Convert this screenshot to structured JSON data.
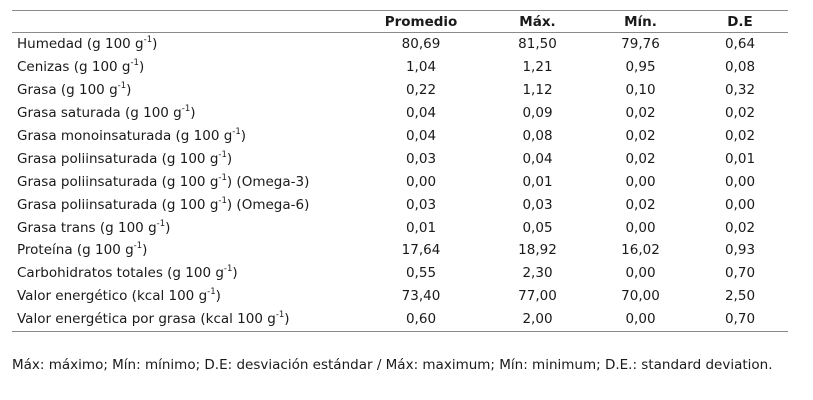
{
  "table": {
    "headers": [
      "",
      "Promedio",
      "Máx.",
      "Mín.",
      "D.E"
    ],
    "rows": [
      {
        "label": "Humedad (g 100 g",
        "sup": "-1",
        "close": ")",
        "promedio": "80,69",
        "max": "81,50",
        "min": "79,76",
        "de": "0,64"
      },
      {
        "label": "Cenizas (g 100 g",
        "sup": "-1",
        "close": ")",
        "promedio": "1,04",
        "max": "1,21",
        "min": "0,95",
        "de": "0,08"
      },
      {
        "label": "Grasa (g 100 g",
        "sup": "-1",
        "close": ")",
        "promedio": "0,22",
        "max": "1,12",
        "min": "0,10",
        "de": "0,32"
      },
      {
        "label": "Grasa saturada (g 100 g",
        "sup": "-1",
        "close": ")",
        "promedio": "0,04",
        "max": "0,09",
        "min": "0,02",
        "de": "0,02"
      },
      {
        "label": "Grasa monoinsaturada (g 100 g",
        "sup": "-1",
        "close": ")",
        "promedio": "0,04",
        "max": "0,08",
        "min": "0,02",
        "de": "0,02"
      },
      {
        "label": "Grasa poliinsaturada (g 100 g",
        "sup": "-1",
        "close": ")",
        "promedio": "0,03",
        "max": "0,04",
        "min": "0,02",
        "de": "0,01"
      },
      {
        "label": "Grasa poliinsaturada (g 100 g",
        "sup": "-1",
        "close": ") (Omega-3)",
        "promedio": "0,00",
        "max": "0,01",
        "min": "0,00",
        "de": "0,00"
      },
      {
        "label": "Grasa poliinsaturada (g 100 g",
        "sup": "-1",
        "close": ") (Omega-6)",
        "promedio": "0,03",
        "max": "0,03",
        "min": "0,02",
        "de": "0,00"
      },
      {
        "label": "Grasa trans (g 100 g",
        "sup": "-1",
        "close": ")",
        "promedio": "0,01",
        "max": "0,05",
        "min": "0,00",
        "de": "0,02"
      },
      {
        "label": "Proteína (g 100 g",
        "sup": "-1",
        "close": ")",
        "promedio": "17,64",
        "max": "18,92",
        "min": "16,02",
        "de": "0,93"
      },
      {
        "label": "Carbohidratos totales (g 100 g",
        "sup": "-1",
        "close": ")",
        "promedio": "0,55",
        "max": "2,30",
        "min": "0,00",
        "de": "0,70"
      },
      {
        "label": "Valor energético (kcal 100 g",
        "sup": "-1",
        "close": ")",
        "promedio": "73,40",
        "max": "77,00",
        "min": "70,00",
        "de": "2,50"
      },
      {
        "label": "Valor energética por grasa (kcal 100 g",
        "sup": "-1",
        "close": ")",
        "promedio": "0,60",
        "max": "2,00",
        "min": "0,00",
        "de": "0,70"
      }
    ]
  },
  "footnote": "Máx: máximo; Mín: mínimo; D.E: desviación estándar / Máx: maximum; Mín: minimum; D.E.: standard deviation."
}
